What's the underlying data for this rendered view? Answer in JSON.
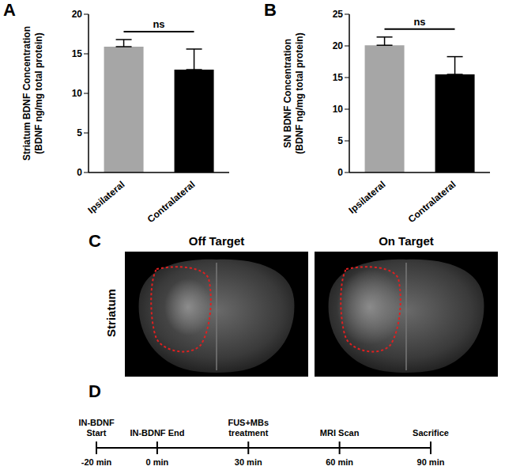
{
  "chart_data": [
    {
      "panel": "A",
      "type": "bar",
      "categories": [
        "Ipsilateral",
        "Contralateral"
      ],
      "values": [
        15.9,
        13.0
      ],
      "errors": [
        0.9,
        2.6
      ],
      "colors": [
        "#a6a6a6",
        "#000000"
      ],
      "ylabel": [
        "Striatum BDNF Concentration",
        "(BDNF ng/mg total protein)"
      ],
      "ylim": [
        0,
        20
      ],
      "yticks": [
        0,
        5,
        10,
        15,
        20
      ],
      "annotation": "ns"
    },
    {
      "panel": "B",
      "type": "bar",
      "categories": [
        "Ipsilateral",
        "Contralateral"
      ],
      "values": [
        20.1,
        15.5
      ],
      "errors": [
        1.3,
        2.8
      ],
      "colors": [
        "#a6a6a6",
        "#000000"
      ],
      "ylabel": [
        "SN BDNF Concentration",
        "(BDNF ng/mg total protein)"
      ],
      "ylim": [
        0,
        25
      ],
      "yticks": [
        0,
        5,
        10,
        15,
        20,
        25
      ],
      "annotation": "ns"
    }
  ],
  "image_panel": {
    "panel": "C",
    "row_label": "Striatum",
    "columns": [
      "Off Target",
      "On Target"
    ]
  },
  "timeline": {
    "panel": "D",
    "events": [
      {
        "time": -20,
        "label": "IN-BDNF Start"
      },
      {
        "time": 0,
        "label": "IN-BDNF End"
      },
      {
        "time": 30,
        "label": "FUS+MBs treatment"
      },
      {
        "time": 60,
        "label": "MRI Scan"
      },
      {
        "time": 90,
        "label": "Sacrifice"
      }
    ],
    "ticks": [
      {
        "value": -20,
        "label": "-20 min"
      },
      {
        "value": 0,
        "label": "0 min"
      },
      {
        "value": 30,
        "label": "30 min"
      },
      {
        "value": 60,
        "label": "60 min"
      },
      {
        "value": 90,
        "label": "90 min"
      }
    ]
  }
}
